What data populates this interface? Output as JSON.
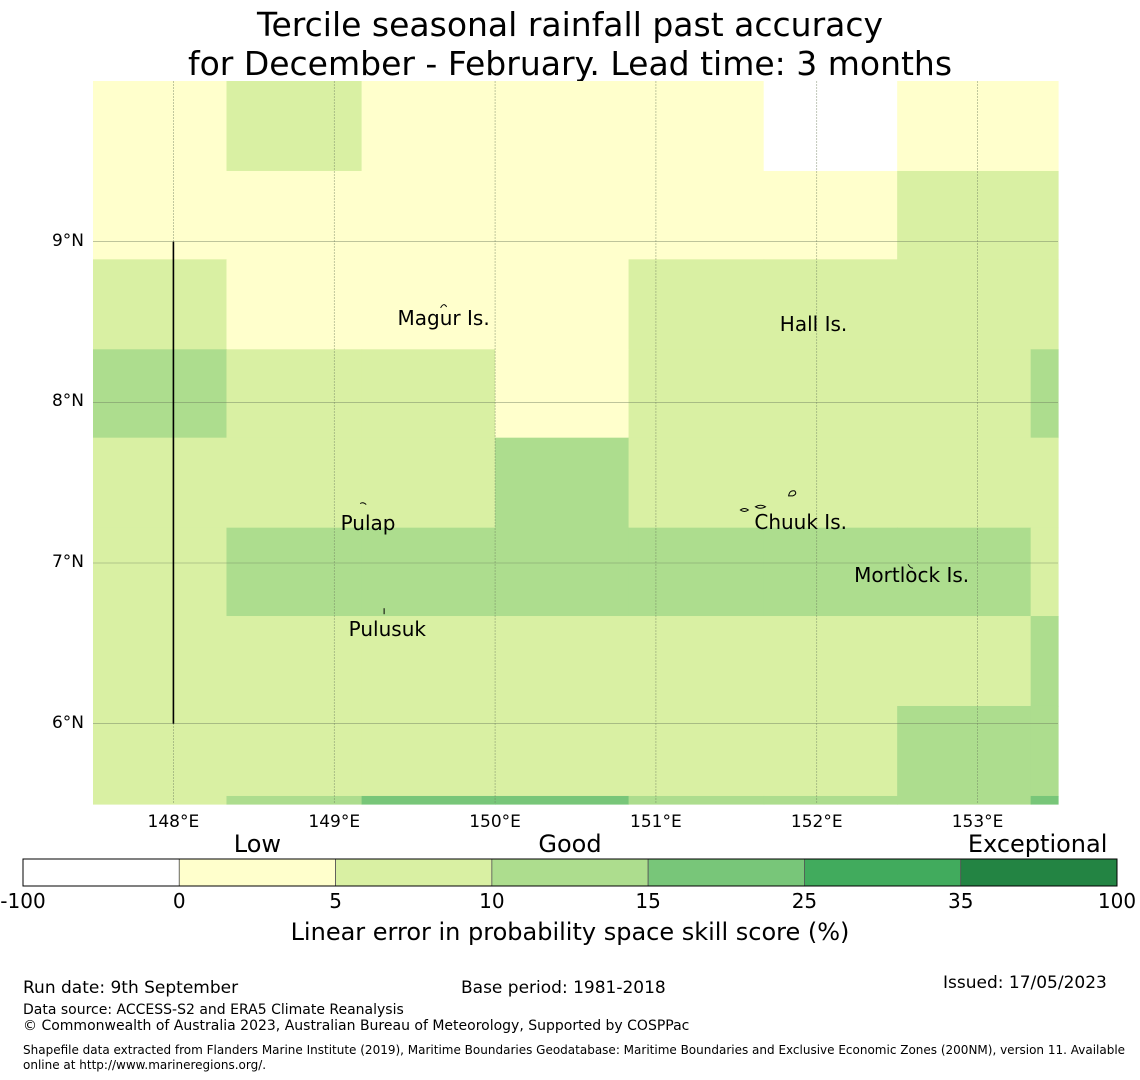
{
  "title": {
    "line1": "Tercile seasonal rainfall past accuracy",
    "line2": "for December - February. Lead time: 3 months"
  },
  "axes": {
    "lat_ticks": [
      {
        "value": 9,
        "label": "9°N"
      },
      {
        "value": 8,
        "label": "8°N"
      },
      {
        "value": 7,
        "label": "7°N"
      },
      {
        "value": 6,
        "label": "6°N"
      }
    ],
    "lon_ticks": [
      {
        "value": 148,
        "label": "148°E"
      },
      {
        "value": 149,
        "label": "149°E"
      },
      {
        "value": 150,
        "label": "150°E"
      },
      {
        "value": 151,
        "label": "151°E"
      },
      {
        "value": 152,
        "label": "152°E"
      },
      {
        "value": 153,
        "label": "153°E"
      }
    ],
    "lon_range": [
      147.5,
      153.5
    ],
    "lat_range": [
      5.5,
      10.0
    ]
  },
  "islands": [
    {
      "name": "Magur Is.",
      "lon": 149.68,
      "lat": 8.52
    },
    {
      "name": "Hall Is.",
      "lon": 151.98,
      "lat": 8.48
    },
    {
      "name": "Pulap",
      "lon": 149.21,
      "lat": 7.24
    },
    {
      "name": "Chuuk Is.",
      "lon": 151.9,
      "lat": 7.25
    },
    {
      "name": "Mortlock Is.",
      "lon": 152.59,
      "lat": 6.92
    },
    {
      "name": "Pulusuk",
      "lon": 149.33,
      "lat": 6.58
    }
  ],
  "colorbar": {
    "categories": [
      {
        "label": "Low",
        "value": 2.5
      },
      {
        "label": "Good",
        "value": 12.5
      },
      {
        "label": "Exceptional",
        "value": 67
      }
    ],
    "boundaries": [
      "-100",
      "0",
      "5",
      "10",
      "15",
      "25",
      "35",
      "100"
    ],
    "colors": [
      "#ffffff",
      "#ffffcc",
      "#d9f0a3",
      "#addd8e",
      "#78c679",
      "#41ab5d",
      "#238443"
    ],
    "title": "Linear error in probability space skill score (%)"
  },
  "footer": {
    "run_date": "Run date: 9th September",
    "base_period": "Base period: 1981-2018",
    "issued": "Issued: 17/05/2023",
    "data_source": "Data source: ACCESS-S2 and ERA5 Climate Reanalysis",
    "copyright": "© Commonwealth of Australia 2023, Australian Bureau of Meteorology, Supported by COSPPac",
    "shapefile_1": "Shapefile data extracted from Flanders Marine Institute (2019), Maritime Boundaries Geodatabase: Maritime Boundaries and Exclusive Economic Zones (200NM), version 11. Available",
    "shapefile_2": "online at http://www.marineregions.org/."
  },
  "chart_data": {
    "type": "heatmap",
    "x_edges": [
      147.5,
      148.33,
      149.17,
      150.0,
      150.83,
      151.67,
      152.5,
      153.33,
      153.5
    ],
    "y_edges": [
      10.0,
      9.44,
      8.89,
      8.33,
      7.78,
      7.22,
      6.67,
      6.11,
      5.55,
      5.5
    ],
    "value_class": [
      [
        1,
        2,
        1,
        1,
        1,
        0,
        1,
        1
      ],
      [
        1,
        1,
        1,
        1,
        1,
        1,
        2,
        2
      ],
      [
        2,
        1,
        1,
        1,
        2,
        2,
        2,
        2
      ],
      [
        3,
        2,
        2,
        1,
        2,
        2,
        2,
        3
      ],
      [
        2,
        2,
        2,
        3,
        2,
        2,
        2,
        2
      ],
      [
        2,
        3,
        3,
        3,
        3,
        3,
        3,
        2
      ],
      [
        2,
        2,
        2,
        2,
        2,
        2,
        2,
        3
      ],
      [
        2,
        2,
        2,
        2,
        2,
        2,
        3,
        3
      ],
      [
        2,
        3,
        4,
        4,
        3,
        3,
        3,
        4
      ]
    ],
    "class_ranges": [
      [
        -100,
        0
      ],
      [
        0,
        5
      ],
      [
        5,
        10
      ],
      [
        10,
        15
      ],
      [
        15,
        25
      ],
      [
        25,
        35
      ],
      [
        35,
        100
      ]
    ],
    "line_segment": {
      "lon": 148,
      "lat_from": 6,
      "lat_to": 9
    }
  }
}
